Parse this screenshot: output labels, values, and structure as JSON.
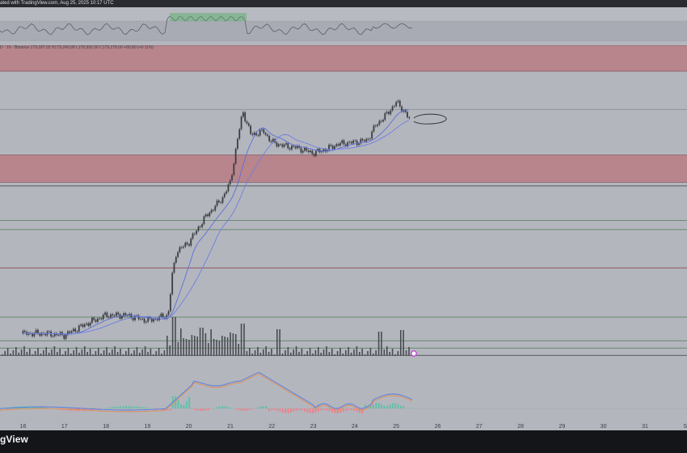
{
  "header": {
    "published_text": "ated with TradingView.com, Aug 25, 2025 10:17 UTC"
  },
  "symbol_legend": {
    "text": "D · 1h · Binance   179,187.02  H179,249.99  L178,992.00  C179,278.00  +90.80 (+0.11%)"
  },
  "brand": {
    "text": "gView"
  },
  "colors": {
    "background": "#b4b6be",
    "candle": "#3a3c42",
    "ma_fast": "#5b6fd6",
    "ma_slow": "#6d7fe0",
    "zone": "#b97c84",
    "zone_line": "#7e4a52",
    "support_line": "#4f7a52",
    "rsi_line": "#5b5e66",
    "rsi_highlight": "#4fae64",
    "macd_line": "#4e7be0",
    "signal_line": "#e38a4d",
    "hist_up": "#5fc1a9",
    "hist_down": "#e8838c",
    "marker": "#c64fd3"
  },
  "chart_data": {
    "type": "line",
    "title": "",
    "x_axis": {
      "labels": [
        "16",
        "17",
        "18",
        "19",
        "20",
        "21",
        "22",
        "23",
        "24",
        "25",
        "26",
        "27",
        "28",
        "29",
        "30",
        "31",
        "S"
      ]
    },
    "series": [
      {
        "kind": "price",
        "x": [
          16,
          16.5,
          17,
          17.5,
          18,
          18.5,
          19,
          19.5,
          19.6,
          19.7,
          20,
          20.4,
          20.8,
          21,
          21.2,
          21.3,
          21.5,
          21.8,
          22,
          22.3,
          22.6,
          23,
          23.3,
          23.6,
          24,
          24.3,
          24.5,
          24.8,
          25,
          25.2,
          25.35
        ],
        "values": [
          1.0,
          1.0,
          0.99,
          1.05,
          1.1,
          1.1,
          1.07,
          1.1,
          1.32,
          1.45,
          1.5,
          1.64,
          1.74,
          1.83,
          2.1,
          2.22,
          2.09,
          2.11,
          2.05,
          2.03,
          2.02,
          1.99,
          2.01,
          2.04,
          2.05,
          2.06,
          2.14,
          2.21,
          2.27,
          2.22,
          2.16
        ]
      }
    ],
    "zones": [
      {
        "name": "upper-resistance",
        "from": 2.58,
        "to": 2.44
      },
      {
        "name": "lower-resistance",
        "from": 1.98,
        "to": 1.83
      }
    ],
    "horizontal_lines": [
      2.23,
      1.81,
      1.62,
      1.57,
      1.36,
      1.09,
      0.96,
      0.92,
      0.88
    ],
    "rsi_panel": true,
    "volume_panel": true,
    "macd_panel": true,
    "grid": false
  }
}
